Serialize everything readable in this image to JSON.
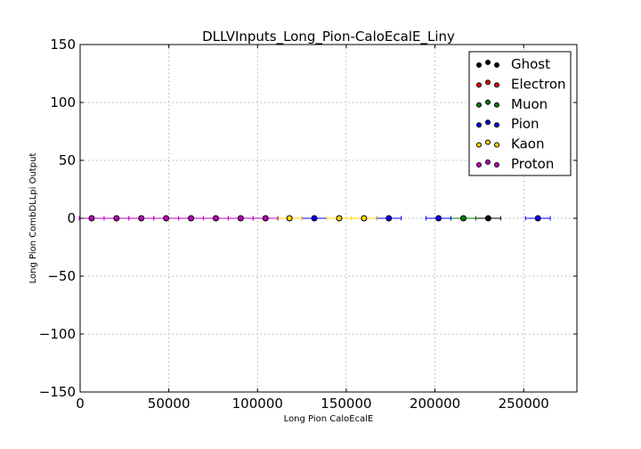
{
  "chart_data": {
    "type": "scatter",
    "title": "DLLVInputs_Long_Pion-CaloEcalE_Liny",
    "xlabel": "Long Pion CaloEcalE",
    "ylabel": "Long Pion CombDLLpi Output",
    "xlim": [
      0,
      280000
    ],
    "ylim": [
      -150,
      150
    ],
    "xticks": [
      0,
      50000,
      100000,
      150000,
      200000,
      250000
    ],
    "xtick_labels": [
      "0",
      "50000",
      "100000",
      "150000",
      "200000",
      "250000"
    ],
    "yticks": [
      -150,
      -100,
      -50,
      0,
      50,
      100,
      150
    ],
    "ytick_labels": [
      "−150",
      "−100",
      "−50",
      "0",
      "50",
      "100",
      "150"
    ],
    "grid": true,
    "legend_position": "top-right",
    "xerr": 7000,
    "series": [
      {
        "name": "Ghost",
        "color": "#000000",
        "points": [
          [
            230000,
            0
          ]
        ]
      },
      {
        "name": "Electron",
        "color": "#ff0000",
        "points": []
      },
      {
        "name": "Muon",
        "color": "#008000",
        "points": [
          [
            216000,
            0
          ]
        ]
      },
      {
        "name": "Pion",
        "color": "#0000ff",
        "points": [
          [
            132000,
            0
          ],
          [
            174000,
            0
          ],
          [
            202000,
            0
          ],
          [
            258000,
            0
          ]
        ]
      },
      {
        "name": "Kaon",
        "color": "#ffd700",
        "points": [
          [
            118000,
            0
          ],
          [
            146000,
            0
          ],
          [
            160000,
            0
          ]
        ]
      },
      {
        "name": "Proton",
        "color": "#bf00bf",
        "points": [
          [
            6500,
            0
          ],
          [
            20500,
            0
          ],
          [
            34500,
            0
          ],
          [
            48500,
            0
          ],
          [
            62500,
            0
          ],
          [
            76500,
            0
          ],
          [
            90500,
            0
          ],
          [
            104500,
            0
          ]
        ]
      }
    ]
  }
}
